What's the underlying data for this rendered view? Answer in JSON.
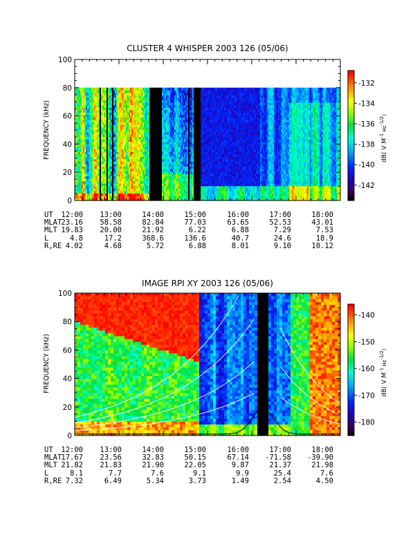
{
  "chart_data": [
    {
      "type": "heatmap",
      "title": "CLUSTER 4 WHISPER 2003 126 (05/06)",
      "ylabel": "FREQUENCY (kHz)",
      "colorbar_label": "dB( V M⁻¹ Hz⁻¹ᐟ²)",
      "colorbar_label_parts": {
        "main": "dB( V M",
        "exp1": "-1",
        "mid": " Hz",
        "exp2": "-1/2",
        "end": ")"
      },
      "xlim_hours": [
        12,
        18
      ],
      "ylim": [
        0,
        100
      ],
      "yticks": [
        "0",
        "20",
        "40",
        "60",
        "80",
        "100"
      ],
      "yvalues": [
        0,
        20,
        40,
        60,
        80,
        100
      ],
      "data_max_khz": 80,
      "colorbar_ticks": [
        "-132",
        "-134",
        "-136",
        "-138",
        "-140",
        "-142"
      ],
      "colorbar_values": [
        -132,
        -134,
        -136,
        -138,
        -140,
        -142
      ],
      "colorbar_range": [
        -143.5,
        -130.8
      ],
      "data_gaps_hours": [
        [
          12.57,
          12.6
        ],
        [
          12.73,
          12.76
        ],
        [
          12.84,
          12.87
        ],
        [
          13.7,
          13.97
        ],
        [
          14.57,
          14.6
        ],
        [
          14.7,
          14.84
        ]
      ],
      "ephemeris": {
        "labels": [
          "UT",
          "MLAT",
          "MLT",
          "L",
          "R,RE"
        ],
        "times": [
          "12:00",
          "13:00",
          "14:00",
          "15:00",
          "16:00",
          "17:00",
          "18:00"
        ],
        "rows": [
          [
            "23.16",
            "58.58",
            "82.84",
            "77.03",
            "63.65",
            "52.53",
            "43.01"
          ],
          [
            "19.83",
            "20.00",
            "21.92",
            "6.22",
            "6.88",
            "7.29",
            "7.53"
          ],
          [
            "4.8",
            "17.2",
            "368.6",
            "136.6",
            "40.7",
            "24.6",
            "18.9"
          ],
          [
            "4.02",
            "4.68",
            "5.72",
            "6.88",
            "8.01",
            "9.10",
            "10.12"
          ]
        ]
      }
    },
    {
      "type": "heatmap",
      "title": "IMAGE RPI XY 2003 126 (05/06)",
      "ylabel": "FREQUENCY (kHz)",
      "colorbar_label_parts": {
        "main": "dB( V M",
        "exp1": "-1",
        "mid": " Hz",
        "exp2": "-1/2",
        "end": ")"
      },
      "xlim_hours": [
        12,
        18
      ],
      "ylim": [
        0,
        100
      ],
      "yticks": [
        "0",
        "20",
        "40",
        "60",
        "80",
        "100"
      ],
      "yvalues": [
        0,
        20,
        40,
        60,
        80,
        100
      ],
      "colorbar_ticks": [
        "-140",
        "-150",
        "-160",
        "-170",
        "-180"
      ],
      "colorbar_values": [
        -140,
        -150,
        -160,
        -170,
        -180
      ],
      "colorbar_range": [
        -185,
        -136
      ],
      "data_gaps_hours": [
        [
          16.15,
          16.38
        ]
      ],
      "ephemeris": {
        "labels": [
          "UT",
          "MLAT",
          "MLT",
          "L",
          "R,RE"
        ],
        "times": [
          "12:00",
          "13:00",
          "14:00",
          "15:00",
          "16:00",
          "17:00",
          "18:00"
        ],
        "rows": [
          [
            "17.67",
            "23.56",
            "32.83",
            "50.15",
            "67.14",
            "-71.58",
            "-39.90"
          ],
          [
            "21.82",
            "21.83",
            "21.90",
            "22.05",
            "9.87",
            "21.37",
            "21.98"
          ],
          [
            "8.1",
            "7.7",
            "7.6",
            "9.1",
            "9.9",
            "25.4",
            "7.6"
          ],
          [
            "7.32",
            "6.49",
            "5.34",
            "3.73",
            "1.49",
            "2.54",
            "4.50"
          ]
        ]
      }
    }
  ]
}
